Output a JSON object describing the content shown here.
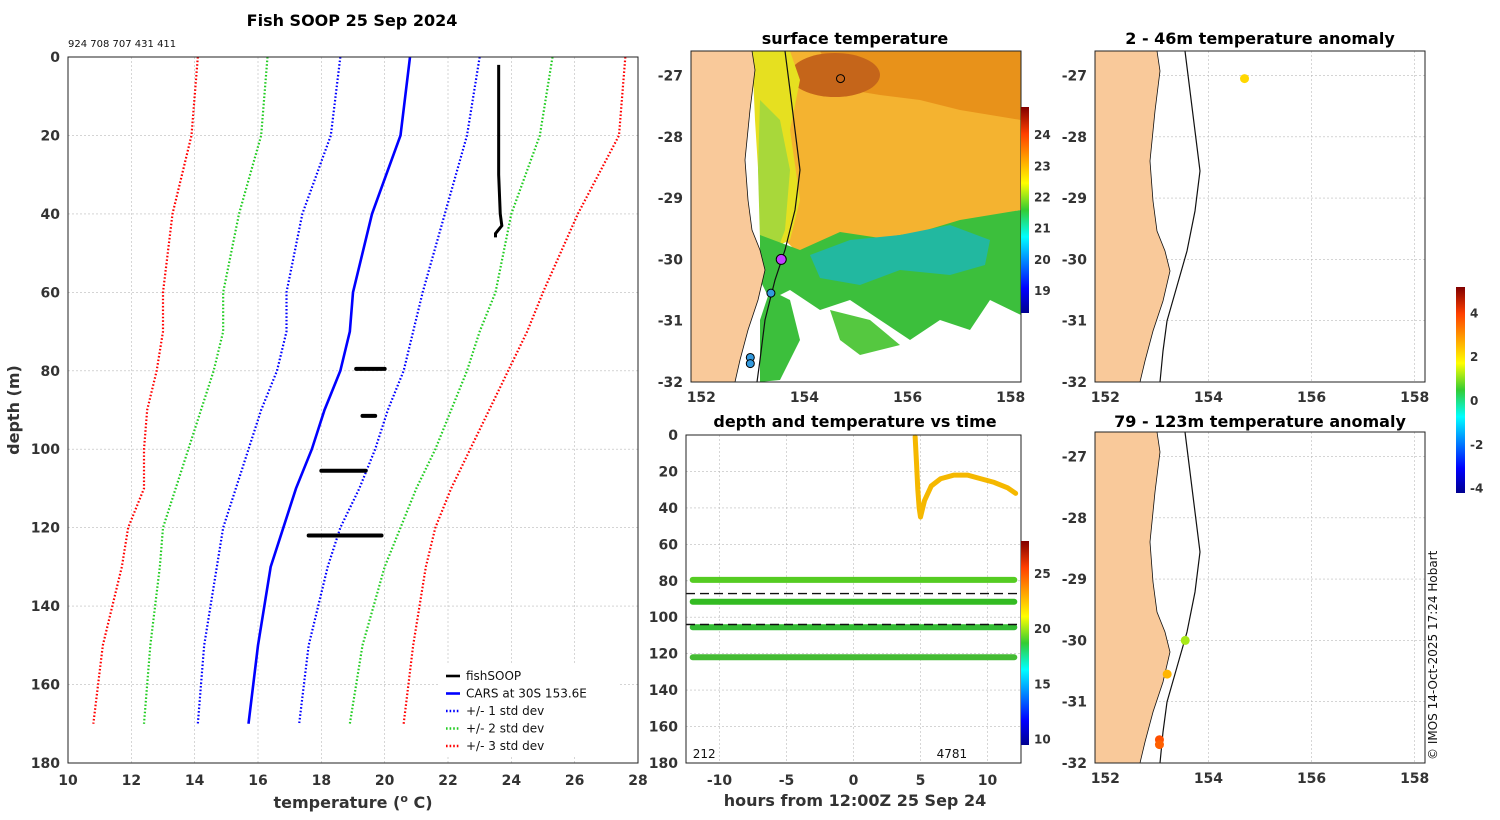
{
  "page": {
    "main_title": "Fish SOOP 25 Sep 2024",
    "ids_text": "924 708 707 431 411",
    "watermark": "© IMOS 14-Oct-2025 17:24 Hobart"
  },
  "chart_data": [
    {
      "type": "line",
      "id": "profile",
      "title": "Fish SOOP 25 Sep 2024",
      "xlabel": "temperature (",
      "xlabel_sup": "o",
      "xlabel_end": " C)",
      "ylabel": "depth (m)",
      "xlim": [
        10,
        28
      ],
      "ylim": [
        180,
        0
      ],
      "xticks": [
        10,
        12,
        14,
        16,
        18,
        20,
        22,
        24,
        26,
        28
      ],
      "yticks": [
        0,
        20,
        40,
        60,
        80,
        100,
        120,
        140,
        160,
        180
      ],
      "legend": [
        {
          "label": "fishSOOP",
          "color": "#000000",
          "style": "solid"
        },
        {
          "label": "CARS at 30S 153.6E",
          "color": "#0000ff",
          "style": "solid"
        },
        {
          "label": "+/- 1 std dev",
          "color": "#0000ff",
          "style": "dotted"
        },
        {
          "label": "+/- 2 std dev",
          "color": "#22cc22",
          "style": "dotted"
        },
        {
          "label": "+/- 3 std dev",
          "color": "#ff0000",
          "style": "dotted"
        }
      ],
      "depth": [
        0,
        20,
        40,
        60,
        70,
        80,
        90,
        100,
        110,
        120,
        130,
        150,
        170
      ],
      "series": [
        {
          "name": "CARS",
          "color": "#0000ff",
          "style": "solid",
          "values": [
            20.8,
            20.5,
            19.6,
            19.0,
            18.9,
            18.6,
            18.1,
            17.7,
            17.2,
            16.8,
            16.4,
            16.0,
            15.7
          ]
        },
        {
          "name": "-1 std",
          "color": "#0000ff",
          "style": "dotted",
          "values": [
            18.6,
            18.3,
            17.4,
            16.9,
            16.9,
            16.6,
            16.1,
            15.7,
            15.3,
            14.9,
            14.7,
            14.3,
            14.1
          ]
        },
        {
          "name": "+1 std",
          "color": "#0000ff",
          "style": "dotted",
          "values": [
            23.0,
            22.6,
            21.9,
            21.2,
            20.9,
            20.6,
            20.1,
            19.7,
            19.2,
            18.6,
            18.2,
            17.6,
            17.3
          ]
        },
        {
          "name": "-2 std",
          "color": "#22cc22",
          "style": "dotted",
          "values": [
            16.3,
            16.1,
            15.4,
            14.9,
            14.9,
            14.6,
            14.2,
            13.8,
            13.4,
            13.0,
            12.9,
            12.6,
            12.4
          ]
        },
        {
          "name": "+2 std",
          "color": "#22cc22",
          "style": "dotted",
          "values": [
            25.3,
            24.9,
            24.0,
            23.5,
            23.0,
            22.6,
            22.1,
            21.6,
            21.0,
            20.5,
            20.0,
            19.3,
            18.9
          ]
        },
        {
          "name": "-3 std",
          "color": "#ff0000",
          "style": "dotted",
          "values": [
            14.1,
            13.9,
            13.3,
            13.0,
            13.0,
            12.8,
            12.5,
            12.4,
            12.4,
            11.9,
            11.7,
            11.1,
            10.8
          ]
        },
        {
          "name": "+3 std",
          "color": "#ff0000",
          "style": "dotted",
          "values": [
            27.6,
            27.4,
            26.1,
            25.0,
            24.5,
            23.9,
            23.3,
            22.7,
            22.1,
            21.6,
            21.3,
            20.9,
            20.6
          ]
        }
      ],
      "fishsoop": {
        "profile_t": [
          23.6,
          23.6,
          23.6,
          23.6,
          23.65,
          23.7,
          23.5,
          23.5
        ],
        "profile_d": [
          2,
          10,
          20,
          30,
          40,
          43,
          45,
          46
        ],
        "clusters": [
          {
            "depth": 79.5,
            "t_min": 19.1,
            "t_max": 20.0
          },
          {
            "depth": 91.5,
            "t_min": 19.3,
            "t_max": 19.7
          },
          {
            "depth": 105.5,
            "t_min": 18.0,
            "t_max": 19.4
          },
          {
            "depth": 122.0,
            "t_min": 17.6,
            "t_max": 19.9
          }
        ]
      }
    },
    {
      "type": "heatmap",
      "id": "surface",
      "title": "surface temperature",
      "xlim": [
        151.8,
        158.2
      ],
      "ylim": [
        -32,
        -26.6
      ],
      "xticks": [
        152,
        154,
        156,
        158
      ],
      "yticks": [
        -27,
        -28,
        -29,
        -30,
        -31,
        -32
      ],
      "colorbar_ticks": [
        19,
        20,
        21,
        22,
        23,
        24
      ],
      "colorbar_range": [
        18.3,
        24.9
      ],
      "markers": [
        {
          "lon": 154.7,
          "lat": -27.05,
          "color": "none"
        },
        {
          "lon": 153.55,
          "lat": -30.0,
          "color": "#c040ff"
        },
        {
          "lon": 153.35,
          "lat": -30.55,
          "color": "#3399dd"
        },
        {
          "lon": 152.95,
          "lat": -31.6,
          "color": "#3399dd"
        },
        {
          "lon": 152.95,
          "lat": -31.7,
          "color": "#3399dd"
        }
      ]
    },
    {
      "type": "scatter",
      "id": "timeseries",
      "title": "depth and temperature vs time",
      "xlabel": "hours from 12:00Z 25 Sep 24",
      "xlim": [
        -12.5,
        12.5
      ],
      "ylim": [
        180,
        0
      ],
      "xticks": [
        -10,
        -5,
        0,
        5,
        10
      ],
      "yticks": [
        0,
        20,
        40,
        60,
        80,
        100,
        120,
        140,
        160,
        180
      ],
      "colorbar_ticks": [
        10,
        15,
        20,
        25
      ],
      "colorbar_range": [
        9.5,
        28
      ],
      "annotations": [
        {
          "text": "212",
          "x": -12.0
        },
        {
          "text": "4781",
          "x": 6.2
        }
      ],
      "dashed_lines": [
        87,
        104
      ],
      "depth_bands": [
        {
          "depth": 79.5,
          "color": "#55cc22"
        },
        {
          "depth": 91.5,
          "color": "#33bb22"
        },
        {
          "depth": 105.5,
          "color": "#33bb33"
        },
        {
          "depth": 122.0,
          "color": "#44bb33"
        }
      ],
      "orange_track": {
        "color": "#f5b800",
        "hours": [
          4.6,
          4.7,
          4.8,
          4.9,
          5.0,
          5.3,
          5.8,
          6.5,
          7.5,
          8.5,
          9.5,
          10.5,
          11.5,
          12.1
        ],
        "depth": [
          1,
          15,
          30,
          40,
          45,
          36,
          28,
          24,
          22,
          22,
          24,
          26,
          29,
          32
        ]
      }
    },
    {
      "type": "scatter",
      "id": "anom_shallow",
      "title": "2 - 46m temperature anomaly",
      "xlim": [
        151.8,
        158.2
      ],
      "ylim": [
        -32,
        -26.6
      ],
      "xticks": [
        152,
        154,
        156,
        158
      ],
      "yticks": [
        -27,
        -28,
        -29,
        -30,
        -31,
        -32
      ],
      "points": [
        {
          "lon": 154.7,
          "lat": -27.05,
          "anomaly": 2.2
        }
      ]
    },
    {
      "type": "scatter",
      "id": "anom_deep",
      "title": "79 - 123m temperature anomaly",
      "xlim": [
        151.8,
        158.2
      ],
      "ylim": [
        -32,
        -26.6
      ],
      "xticks": [
        152,
        154,
        156,
        158
      ],
      "yticks": [
        -27,
        -28,
        -29,
        -30,
        -31,
        -32
      ],
      "colorbar_ticks": [
        -4,
        -2,
        0,
        2,
        4
      ],
      "colorbar_range": [
        -4.2,
        5.2
      ],
      "points": [
        {
          "lon": 153.55,
          "lat": -30.0,
          "anomaly": 1.2
        },
        {
          "lon": 153.2,
          "lat": -30.55,
          "anomaly": 2.6
        },
        {
          "lon": 153.05,
          "lat": -31.62,
          "anomaly": 3.8
        },
        {
          "lon": 153.05,
          "lat": -31.7,
          "anomaly": 3.6
        }
      ]
    }
  ]
}
